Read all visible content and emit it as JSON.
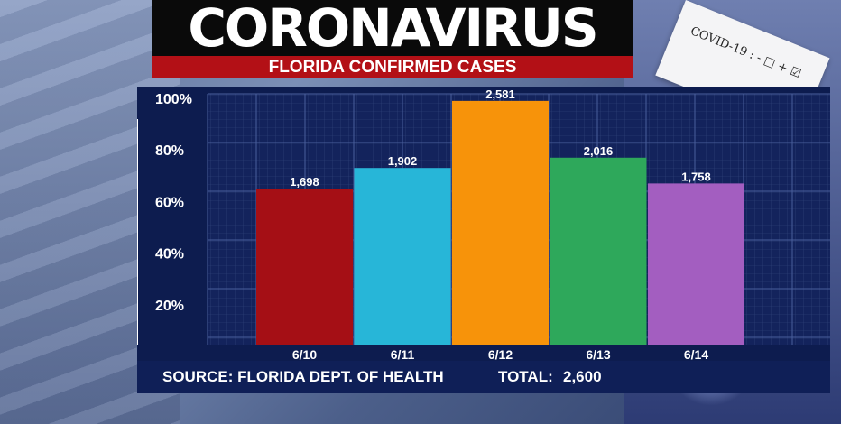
{
  "header": {
    "title": "CORONAVIRUS",
    "subtitle": "FLORIDA CONFIRMED CASES"
  },
  "background": {
    "tube_label": "COVID-19 : - □ + ☑"
  },
  "chart_data": {
    "type": "bar",
    "categories": [
      "6/10",
      "6/11",
      "6/12",
      "6/13",
      "6/14"
    ],
    "values": [
      1698,
      1902,
      2581,
      2016,
      1758
    ],
    "value_labels": [
      "1,698",
      "1,902",
      "2,581",
      "2,016",
      "1,758"
    ],
    "percent_of_axis": [
      65,
      73,
      99,
      77,
      67
    ],
    "colors": [
      "#a50f15",
      "#27b6d8",
      "#f7930a",
      "#2ea85b",
      "#a35ec0"
    ],
    "y_ticks": [
      "20%",
      "40%",
      "60%",
      "80%",
      "100%"
    ],
    "ylim": [
      0,
      100
    ],
    "grid": true,
    "legend": "none"
  },
  "footer": {
    "source": "SOURCE: FLORIDA DEPT. OF HEALTH",
    "total_label": "TOTAL:",
    "total_value": "2,600"
  }
}
